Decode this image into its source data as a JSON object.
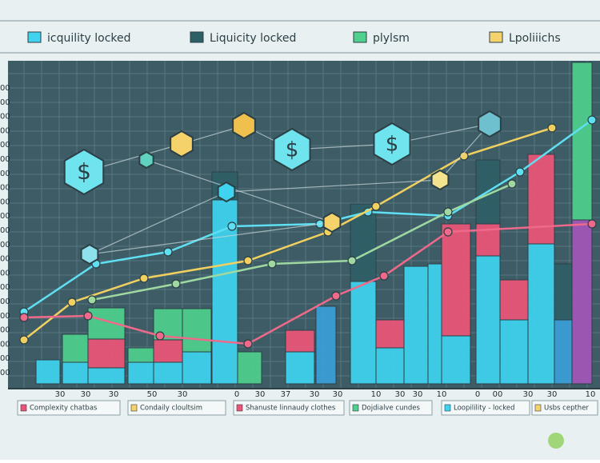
{
  "legend": [
    "icquility locked",
    "Liquicity locked",
    "plylsm",
    "Lpoliiichs"
  ],
  "y_labels": [
    "00",
    "00",
    "00",
    "00",
    "00",
    "00",
    "00",
    "00",
    "00",
    "00",
    "00",
    "00",
    "00",
    "00",
    "00",
    "00",
    "00",
    "00",
    "00",
    "00",
    "00"
  ],
  "x_labels": [
    "30",
    "30",
    "30",
    "50",
    "30",
    "0",
    "30",
    "37",
    "30",
    "30",
    "10",
    "30",
    "30",
    "10",
    "0",
    "00",
    "30",
    "30",
    "10"
  ],
  "footer_legend": [
    "Complexity chatbas",
    "Condaily cloultsim",
    "Shanuste linnaudy clothes",
    "Dojdialve cundes",
    "Loopilility - locked",
    "Usbs cepther"
  ]
}
